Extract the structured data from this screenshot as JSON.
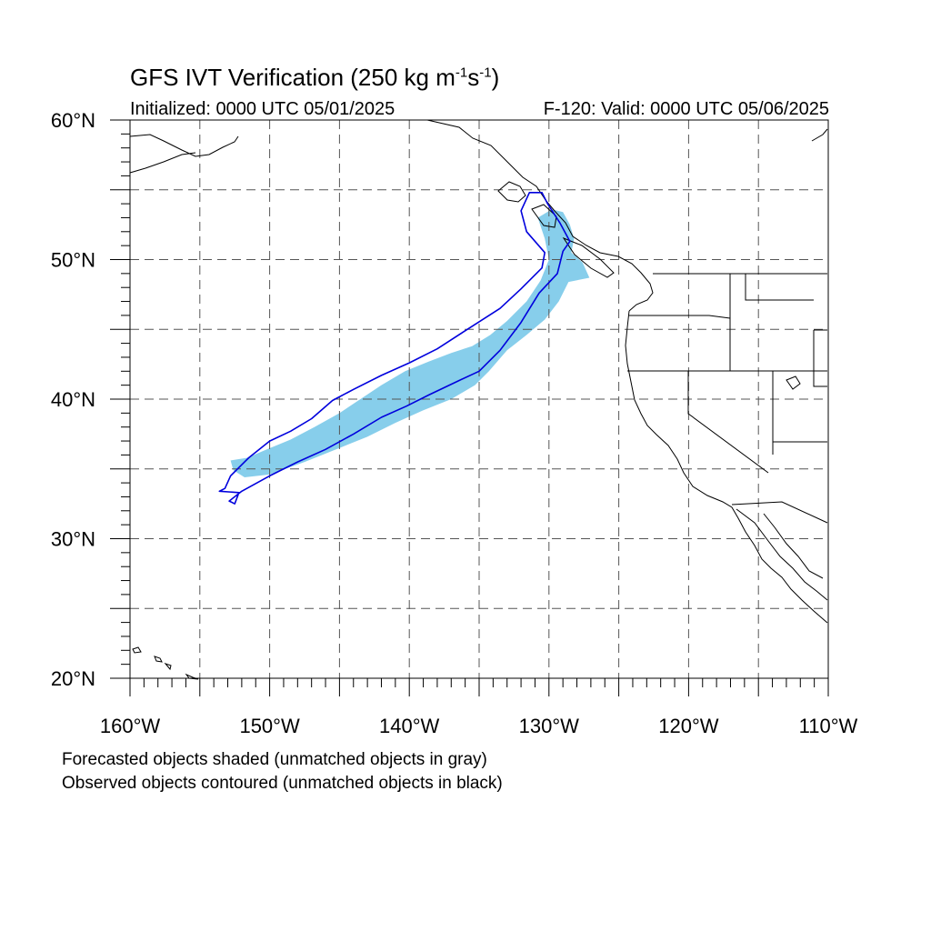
{
  "title": {
    "main": "GFS IVT Verification (250 kg m",
    "sup1": "-1",
    "mid": "s",
    "sup2": "-1",
    "end": ")"
  },
  "subtitle_left": "Initialized: 0000 UTC 05/01/2025",
  "subtitle_right": "F-120: Valid: 0000 UTC 05/06/2025",
  "footnotes": [
    "Forecasted objects shaded (unmatched objects in gray)",
    "Observed objects contoured (unmatched objects in black)"
  ],
  "map": {
    "lon_range": [
      -160,
      -110
    ],
    "lat_range": [
      20,
      60
    ],
    "lon_ticks": [
      {
        "value": -160,
        "label": "160°W"
      },
      {
        "value": -150,
        "label": "150°W"
      },
      {
        "value": -140,
        "label": "140°W"
      },
      {
        "value": -130,
        "label": "130°W"
      },
      {
        "value": -120,
        "label": "120°W"
      },
      {
        "value": -110,
        "label": "110°W"
      }
    ],
    "lat_ticks": [
      {
        "value": 20,
        "label": "20°N"
      },
      {
        "value": 30,
        "label": "30°N"
      },
      {
        "value": 40,
        "label": "40°N"
      },
      {
        "value": 50,
        "label": "50°N"
      },
      {
        "value": 60,
        "label": "60°N"
      }
    ],
    "grid_interval_deg": 5,
    "grid_style": "dashed",
    "colors": {
      "forecast_fill": "#87ceeb",
      "observed_contour": "#0000dd",
      "coastline": "#000000",
      "grid": "#555555"
    },
    "forecast_object": [
      [
        -151.8,
        34.4
      ],
      [
        -152.6,
        34.9
      ],
      [
        -152.8,
        35.6
      ],
      [
        -151.6,
        35.8
      ],
      [
        -150.2,
        36.4
      ],
      [
        -148.5,
        37.1
      ],
      [
        -146.8,
        38.0
      ],
      [
        -145.0,
        39.0
      ],
      [
        -143.5,
        40.0
      ],
      [
        -142.0,
        41.0
      ],
      [
        -140.3,
        42.0
      ],
      [
        -138.6,
        42.7
      ],
      [
        -137.0,
        43.3
      ],
      [
        -135.5,
        43.8
      ],
      [
        -134.2,
        44.6
      ],
      [
        -133.0,
        45.6
      ],
      [
        -131.6,
        47.0
      ],
      [
        -130.6,
        48.5
      ],
      [
        -130.0,
        50.0
      ],
      [
        -130.3,
        51.5
      ],
      [
        -130.8,
        53.0
      ],
      [
        -129.8,
        53.6
      ],
      [
        -129.0,
        53.4
      ],
      [
        -128.5,
        52.5
      ],
      [
        -128.2,
        51.5
      ],
      [
        -128.4,
        50.5
      ],
      [
        -127.6,
        49.8
      ],
      [
        -127.1,
        48.7
      ],
      [
        -128.6,
        48.4
      ],
      [
        -129.3,
        47.0
      ],
      [
        -130.3,
        45.7
      ],
      [
        -131.6,
        44.6
      ],
      [
        -133.0,
        43.5
      ],
      [
        -134.3,
        42.0
      ],
      [
        -135.3,
        41.0
      ],
      [
        -137.0,
        40.0
      ],
      [
        -139.0,
        39.2
      ],
      [
        -141.0,
        38.3
      ],
      [
        -143.0,
        37.3
      ],
      [
        -145.0,
        36.5
      ],
      [
        -147.5,
        35.5
      ],
      [
        -150.0,
        34.6
      ]
    ],
    "observed_object": [
      [
        -153.2,
        33.6
      ],
      [
        -152.8,
        34.5
      ],
      [
        -151.5,
        35.8
      ],
      [
        -150.0,
        37.0
      ],
      [
        -148.5,
        37.7
      ],
      [
        -147.0,
        38.6
      ],
      [
        -145.5,
        39.9
      ],
      [
        -144.0,
        40.7
      ],
      [
        -142.0,
        41.7
      ],
      [
        -140.0,
        42.6
      ],
      [
        -138.0,
        43.6
      ],
      [
        -136.0,
        44.9
      ],
      [
        -133.5,
        46.5
      ],
      [
        -132.0,
        47.9
      ],
      [
        -130.5,
        49.4
      ],
      [
        -130.3,
        50.5
      ],
      [
        -131.6,
        52.0
      ],
      [
        -132.0,
        53.5
      ],
      [
        -131.4,
        54.8
      ],
      [
        -130.5,
        54.8
      ],
      [
        -130.1,
        54.0
      ],
      [
        -129.2,
        52.6
      ],
      [
        -128.5,
        51.3
      ],
      [
        -129.0,
        50.6
      ],
      [
        -129.4,
        49.0
      ],
      [
        -130.7,
        47.6
      ],
      [
        -132.0,
        45.5
      ],
      [
        -133.5,
        43.5
      ],
      [
        -135.0,
        42.0
      ],
      [
        -136.5,
        41.3
      ],
      [
        -138.6,
        40.3
      ],
      [
        -140.2,
        39.5
      ],
      [
        -142.0,
        38.7
      ],
      [
        -144.0,
        37.5
      ],
      [
        -146.0,
        36.4
      ],
      [
        -148.0,
        35.5
      ],
      [
        -150.0,
        34.5
      ],
      [
        -152.0,
        33.4
      ],
      [
        -152.9,
        32.7
      ],
      [
        -152.5,
        32.5
      ],
      [
        -152.2,
        33.3
      ],
      [
        -153.6,
        33.4
      ]
    ]
  }
}
